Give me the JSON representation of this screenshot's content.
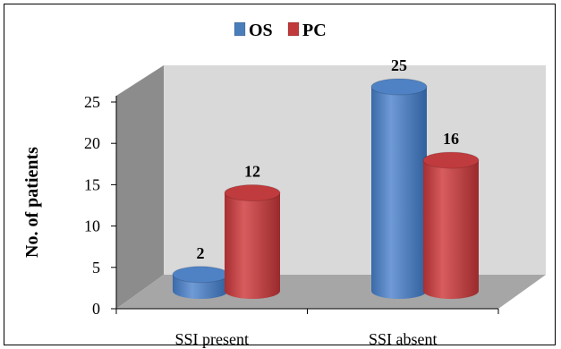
{
  "chart_data": {
    "type": "bar",
    "style": "3d-cylinder",
    "categories": [
      "SSI present",
      "SSI absent"
    ],
    "series": [
      {
        "name": "OS",
        "values": [
          2,
          25
        ],
        "color": "#4a7ebb"
      },
      {
        "name": "PC",
        "values": [
          12,
          16
        ],
        "color": "#c0393b"
      }
    ],
    "ylabel": "No. of patients",
    "xlabel": "",
    "ylim": [
      0,
      25
    ],
    "yticks": [
      "0",
      "5",
      "10",
      "15",
      "20",
      "25"
    ],
    "data_labels": true,
    "legend": "top-center",
    "grid": false,
    "wall_color": "#d9d9d9",
    "wall_side_color": "#8c8c8c",
    "floor_color": "#a6a6a6"
  }
}
